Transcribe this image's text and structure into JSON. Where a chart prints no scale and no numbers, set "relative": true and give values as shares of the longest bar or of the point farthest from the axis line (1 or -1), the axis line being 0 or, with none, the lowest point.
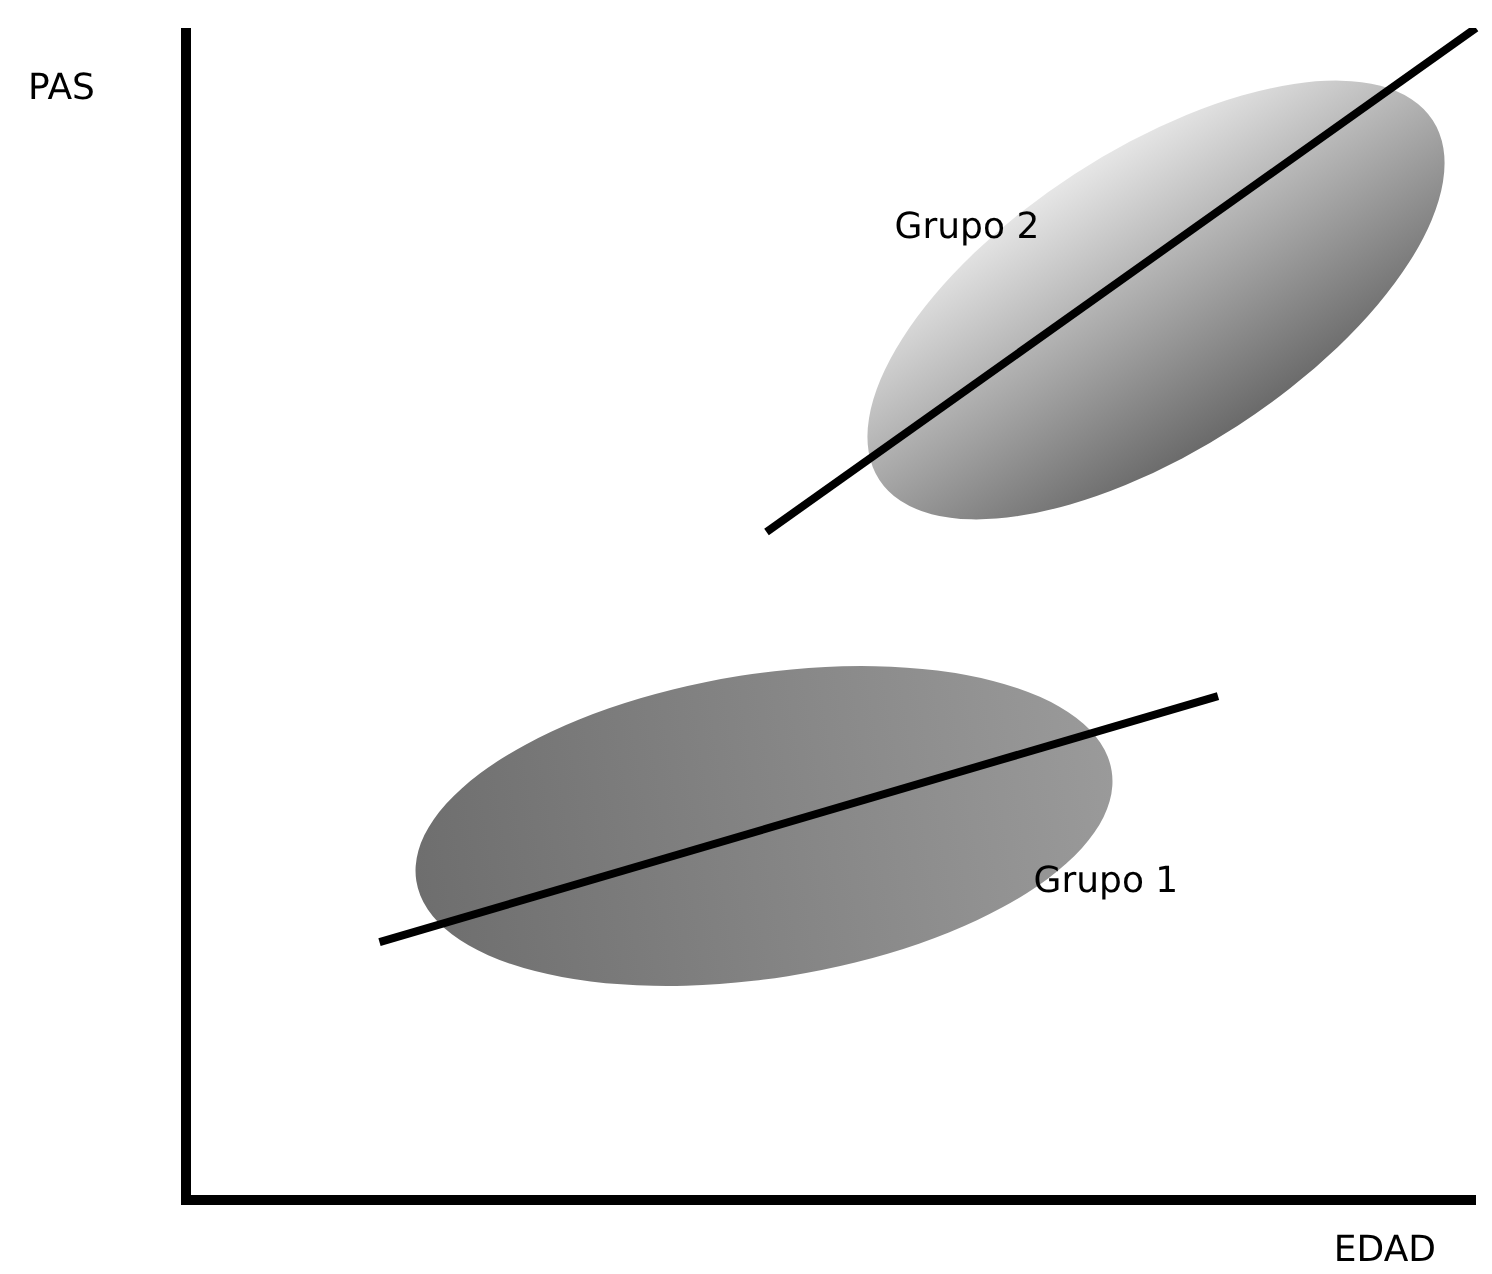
{
  "chart_data": {
    "type": "line",
    "relative": true,
    "xlabel": "EDAD",
    "ylabel": "PAS",
    "legend": false,
    "marker": "none",
    "line_style": "solid",
    "categories": [
      null,
      null,
      null,
      null,
      null,
      null,
      null,
      null,
      null,
      null,
      null,
      null,
      null,
      null,
      null,
      null,
      null,
      null,
      null,
      null,
      null
    ],
    "series": [
      {
        "name": "Grupo 1",
        "color": "#000000",
        "values": [
          null,
          null,
          null,
          0.22,
          null,
          null,
          null,
          null,
          null,
          null,
          null,
          null,
          null,
          null,
          null,
          null,
          0.43,
          null,
          null,
          null,
          null
        ]
      },
      {
        "name": "Grupo 2",
        "color": "#000000",
        "values": [
          null,
          null,
          null,
          null,
          null,
          null,
          null,
          null,
          null,
          0.57,
          null,
          null,
          null,
          null,
          null,
          null,
          null,
          null,
          null,
          null,
          1.0
        ]
      }
    ]
  }
}
